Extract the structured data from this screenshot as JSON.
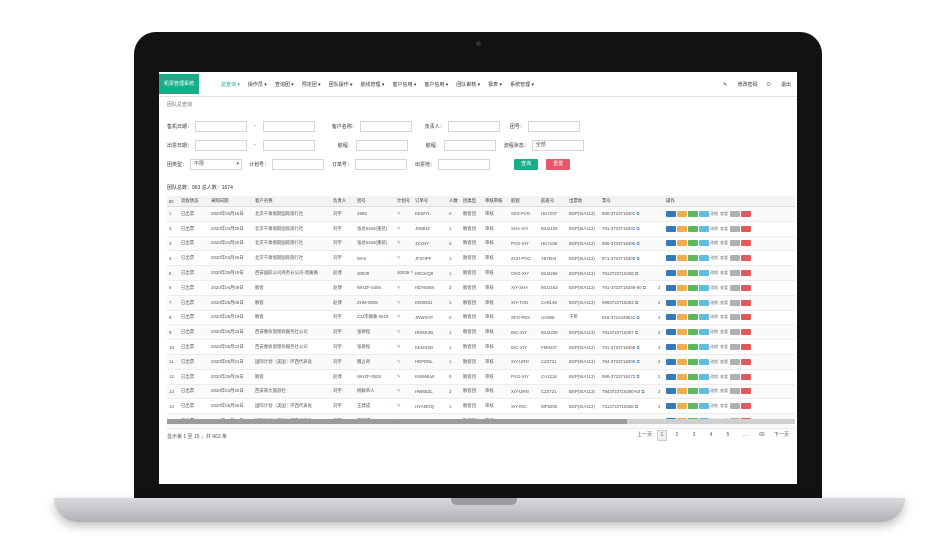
{
  "app": {
    "logo": "机票管理系统",
    "logout": "退出",
    "change_password": "修改密码"
  },
  "nav": [
    "总查询 ▾",
    "操作员 ▾",
    "查询团 ▾",
    "预定团 ▾",
    "团队操作 ▾",
    "航线管理 ▾",
    "客户信用 ▾",
    "客户信用 ▾",
    "团队审核 ▾",
    "报表 ▾",
    "系统管理 ▾"
  ],
  "breadcrumb": "团队总查询",
  "filters": {
    "row1": {
      "sale_date": "售机日期：",
      "customer": "客户名称：",
      "owner": "负责人：",
      "team_no": "团号："
    },
    "row2": {
      "ticket_date": "出票日期：",
      "route": "航程：",
      "flight": "航程：",
      "status": "流程状态：",
      "status_value": "全部"
    },
    "row3": {
      "team_type": "团类型：",
      "team_type_value": "不限",
      "plan_no": "计划号：",
      "order_no": "订单号：",
      "depart": "出票地：",
      "search": "查询",
      "reset": "重置"
    }
  },
  "summary": "团队总数：963  总人数：1674",
  "columns": [
    "ID",
    "流程状态",
    "采购日期",
    "客户名称",
    "负责人",
    "团号",
    "计划号",
    "订单号",
    "人数",
    "团类型",
    "审核审核",
    "航程",
    "航班号",
    "出票地",
    "票号",
    "",
    "操作"
  ],
  "rows": [
    [
      "1",
      "已出票",
      "2020年04月15日",
      "北京千乘假期国际旅行社",
      "刘宇",
      "2865",
      "",
      "KEWYL",
      "0",
      "散客团",
      "审核",
      "SZX-PVG",
      "HU7207",
      "BSP(SIA113)",
      "880-3723716301",
      "",
      ""
    ],
    [
      "2",
      "已出票",
      "2020年04月25日",
      "北京千乘假期国际旅行社",
      "刘宇",
      "张总0425(重装)",
      "",
      "JNMHZ",
      "1",
      "散客团",
      "审核",
      "SHA-XIY",
      "MU2106",
      "BSP(SIA113)",
      "781-3723716303",
      "",
      ""
    ],
    [
      "3",
      "已出票",
      "2020年04月25日",
      "北京千乘假期国际旅行社",
      "刘宇",
      "张总0425(重装)",
      "",
      "JXXNY",
      "0",
      "散客团",
      "审核",
      "PVG-XIY",
      "HU7106",
      "BSP(SIA113)",
      "880-3723716305",
      "",
      ""
    ],
    [
      "4",
      "已出票",
      "2020年04月26日",
      "北京千乘假期国际旅行社",
      "刘宇",
      "MAX",
      "",
      "JFZHPF",
      "1",
      "散客团",
      "审核",
      "ZUH-PVG",
      "Y87504",
      "BSP(SIA113)",
      "971-3723716305",
      "",
      ""
    ],
    [
      "5",
      "已出票",
      "2020年05月19日",
      "西安国航公司商务分公司-周嘉嘉",
      "赵博",
      "30039",
      "30039",
      "KRCKQ8",
      "1",
      "散客团",
      "审核",
      "CKG-XIY",
      "MU2268",
      "BSP(SIA113)",
      "7813723716306",
      "",
      ""
    ],
    [
      "6",
      "已出票",
      "2020年04月09日",
      "散客",
      "赵博",
      "WHZF-0406",
      "",
      "HDYEBW",
      "2",
      "散客团",
      "审核",
      "XIY-SHA",
      "MU2153",
      "BSP(SIA113)",
      "781-3723716349-50",
      "2",
      ""
    ],
    [
      "7",
      "已出票",
      "2020年05月08日",
      "散客",
      "赵博",
      "ZHM-0509",
      "",
      "KDW541",
      "1",
      "散客团",
      "审核",
      "XIY-TSN",
      "CA8149",
      "BSP(SIA113)",
      "9993723716354",
      "2",
      ""
    ],
    [
      "8",
      "已出票",
      "2020年06月19日",
      "散客",
      "刘宇",
      "ZJJ李娜嘉-0619",
      "",
      "JNWXHT",
      "0",
      "散客团",
      "审核",
      "SFO-PEK",
      "UA888",
      "千单",
      "016-3710448641",
      "2",
      ""
    ],
    [
      "9",
      "已出票",
      "2020年05月23日",
      "西安春拆恩理商服务社公司",
      "刘宇",
      "张渺程",
      "",
      "HMXK3B",
      "1",
      "散客团",
      "审核",
      "INC-XIY",
      "MU2329",
      "BSP(SIA113)",
      "7813723716307",
      "2",
      ""
    ],
    [
      "10",
      "已出票",
      "2020年05月23日",
      "西安春拆恩理商服务社公司",
      "刘宇",
      "张渺程",
      "",
      "KEMX5D",
      "1",
      "散客团",
      "审核",
      "INC-XIY",
      "FM9407",
      "BSP(SIA113)",
      "781-3723716308",
      "2",
      ""
    ],
    [
      "11",
      "已出票",
      "2020年05月21日",
      "国际计划（美国｜环西代表处",
      "刘宇",
      "魏占奇",
      "",
      "HEPDNL",
      "1",
      "散客团",
      "审核",
      "XIY-URN",
      "CZ3721",
      "BSP(SIA113)",
      "784-3723716309",
      "2",
      ""
    ],
    [
      "12",
      "已出票",
      "2020年05月26日",
      "散客",
      "赵博",
      "WHZF-0526",
      "",
      "KW6MLW",
      "0",
      "散客团",
      "审核",
      "PVG-XIY",
      "CA1216",
      "BSP(SIA113)",
      "999-3723716372",
      "2",
      ""
    ],
    [
      "13",
      "已出票",
      "2020年04月25日",
      "西安南大旅游社",
      "刘宇",
      "杨颖单人",
      "",
      "HW6EZL",
      "2",
      "散客团",
      "审核",
      "XIY-URN",
      "CZ3721",
      "BSP(SIA113)",
      "7843723716360-63",
      "2",
      ""
    ],
    [
      "14",
      "已出票",
      "2020年05月28日",
      "国际计划（美国｜环西代表处",
      "刘宇",
      "王建成",
      "",
      "HYAMGQ",
      "1",
      "散客团",
      "审核",
      "XIY-INC",
      "MF9205",
      "BSP(SIA113)",
      "7313723716366",
      "2",
      ""
    ],
    [
      "15",
      "已出票",
      "2020年05月28日",
      "国际计划（美国｜环西代表处",
      "刘宇",
      "王建成",
      "",
      "KVNW62",
      "1",
      "散客团",
      "审核",
      "INC-XIY",
      "MU2330",
      "BSP(SIA113)",
      "7813723716367",
      "2",
      ""
    ]
  ],
  "pager_info": "显示第 1 至 15 ，共 963 条",
  "pager": [
    "上一页",
    "1",
    "2",
    "3",
    "4",
    "5",
    "...",
    "65",
    "下一页"
  ],
  "op_labels": {
    "a": "预览",
    "b": "修改",
    "c": "审核",
    "d": "出票",
    "e": "改期",
    "f": "查看",
    "g": "退票"
  },
  "colors": {
    "brand": "#1aaf8b",
    "search": "#1aaf8b",
    "reset": "#e8566b"
  }
}
